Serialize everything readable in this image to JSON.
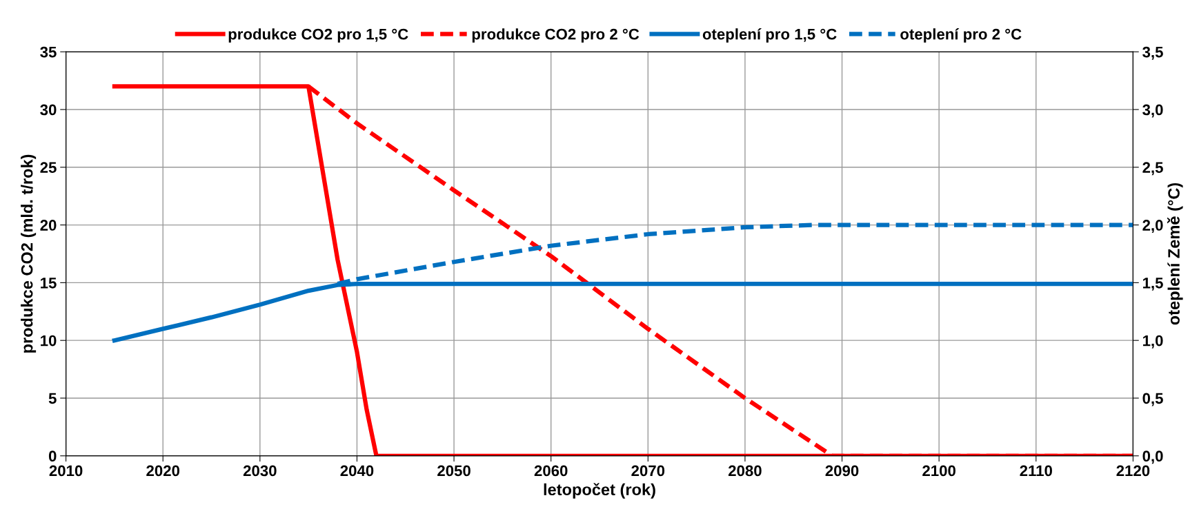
{
  "chart_data": {
    "type": "line",
    "xlabel": "letopočet (rok)",
    "ylabel": "produkce CO2 (mld. t/rok)",
    "y2label": "oteplení Země (°C)",
    "xlim": [
      2010,
      2120
    ],
    "xticks": [
      2010,
      2020,
      2030,
      2040,
      2050,
      2060,
      2070,
      2080,
      2090,
      2100,
      2110,
      2120
    ],
    "ylim": [
      0,
      35
    ],
    "yticks": [
      0,
      5,
      10,
      15,
      20,
      25,
      30,
      35
    ],
    "y2lim": [
      0,
      3.5
    ],
    "y2ticks": [
      {
        "value": 0,
        "label": "0,0"
      },
      {
        "value": 0.5,
        "label": "0,5"
      },
      {
        "value": 1,
        "label": "1,0"
      },
      {
        "value": 1.5,
        "label": "1,5"
      },
      {
        "value": 2,
        "label": "2,0"
      },
      {
        "value": 2.5,
        "label": "2,5"
      },
      {
        "value": 3,
        "label": "3,0"
      },
      {
        "value": 3.5,
        "label": "3,5"
      }
    ],
    "grid": true,
    "legend": "top",
    "marker": "none",
    "series": [
      {
        "name": "produkce CO2 pro 1,5 °C",
        "color": "#ff0000",
        "line_style": "solid",
        "x": [
          2015,
          2035,
          2036,
          2037,
          2038,
          2039,
          2040,
          2041,
          2042,
          2120
        ],
        "values": [
          32,
          32,
          27,
          22,
          17,
          13,
          9,
          4,
          0,
          0
        ]
      },
      {
        "name": "produkce CO2 pro 2 °C",
        "color": "#ff0000",
        "line_style": "dashed",
        "x": [
          2035,
          2040,
          2050,
          2060,
          2070,
          2080,
          2089,
          2120
        ],
        "values": [
          32,
          28.8,
          23,
          17.3,
          11,
          5,
          0,
          0
        ]
      },
      {
        "name": "oteplení pro 1,5 °C",
        "color": "#0070c0",
        "line_style": "solid",
        "axis": "y2",
        "x": [
          2015,
          2020,
          2025,
          2030,
          2035,
          2038,
          2040,
          2120
        ],
        "values": [
          1.0,
          1.1,
          1.2,
          1.31,
          1.43,
          1.48,
          1.49,
          1.49
        ]
      },
      {
        "name": "oteplení pro 2 °C",
        "color": "#0070c0",
        "line_style": "dashed",
        "axis": "y2",
        "x": [
          2038,
          2040,
          2050,
          2060,
          2070,
          2080,
          2087,
          2120
        ],
        "values": [
          1.49,
          1.53,
          1.68,
          1.82,
          1.92,
          1.98,
          2.0,
          2.0
        ]
      }
    ]
  }
}
